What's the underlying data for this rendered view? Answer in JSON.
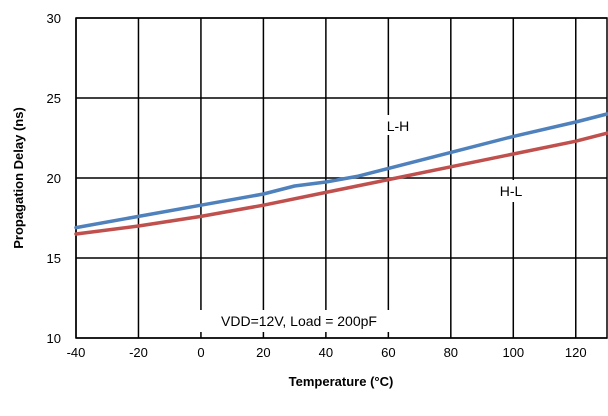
{
  "chart_data": {
    "type": "line",
    "title": "",
    "xlabel": "Temperature (°C)",
    "ylabel": "Propagation Delay (ns)",
    "xlim": [
      -40,
      130
    ],
    "ylim": [
      10,
      30
    ],
    "x_ticks": [
      -40,
      -20,
      0,
      20,
      40,
      60,
      80,
      100,
      120
    ],
    "y_ticks": [
      10,
      15,
      20,
      25,
      30
    ],
    "grid": true,
    "series": [
      {
        "name": "L-H",
        "color": "#4f81bd",
        "x": [
          -40,
          -20,
          0,
          20,
          30,
          40,
          50,
          60,
          80,
          100,
          120,
          130
        ],
        "y": [
          16.9,
          17.6,
          18.3,
          19.0,
          19.5,
          19.75,
          20.1,
          20.6,
          21.6,
          22.6,
          23.5,
          24.0
        ]
      },
      {
        "name": "H-L",
        "color": "#c0504d",
        "x": [
          -40,
          -20,
          0,
          20,
          40,
          60,
          80,
          100,
          120,
          130
        ],
        "y": [
          16.5,
          17.0,
          17.6,
          18.3,
          19.1,
          19.9,
          20.7,
          21.5,
          22.3,
          22.8
        ]
      }
    ],
    "annotations": {
      "series_label_1": "L-H",
      "series_label_2": "H-L",
      "condition": "VDD=12V, Load = 200pF"
    }
  }
}
